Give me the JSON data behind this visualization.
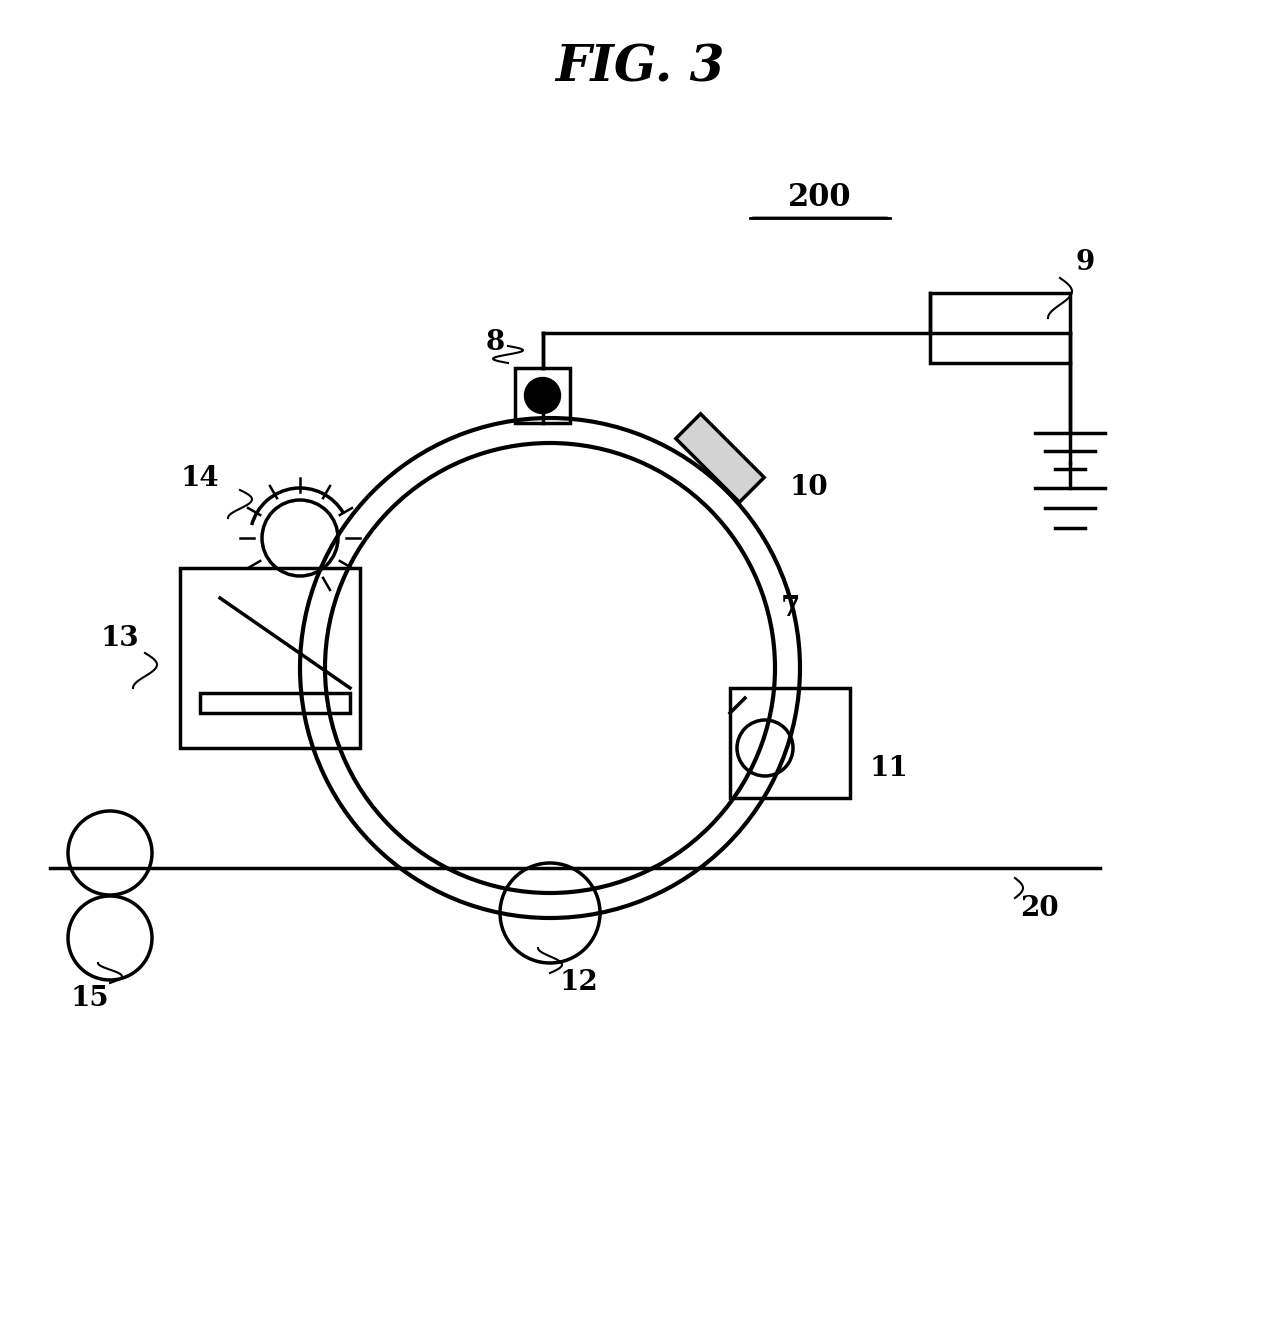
{
  "title": "FIG. 3",
  "background_color": "#ffffff",
  "line_color": "#000000",
  "label_200": "200",
  "label_9": "9",
  "label_8": "8",
  "label_10": "10",
  "label_7": "7",
  "label_11": "11",
  "label_12": "12",
  "label_13": "13",
  "label_14": "14",
  "label_15": "15",
  "label_20": "20"
}
